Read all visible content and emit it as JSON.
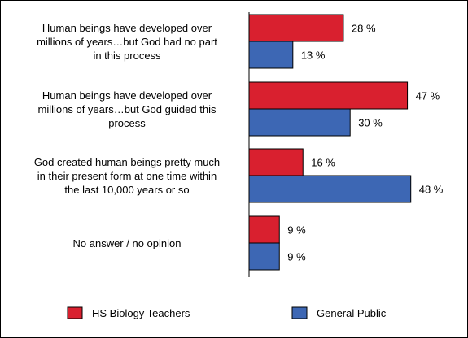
{
  "chart_data": {
    "type": "bar",
    "orientation": "horizontal",
    "categories": [
      [
        "Human beings have developed over",
        "millions of years…but God had no part",
        "in this process"
      ],
      [
        "Human beings have developed over",
        "millions of years…but God guided this",
        "process"
      ],
      [
        "God created human beings pretty much",
        "in their present form at one time within",
        "the last 10,000 years or so"
      ],
      [
        "No answer / no opinion"
      ]
    ],
    "series": [
      {
        "name": "HS Biology Teachers",
        "values": [
          28,
          47,
          16,
          9
        ],
        "labels": [
          "28 %",
          "47 %",
          "16 %",
          "9 %"
        ],
        "color": "#d9202f"
      },
      {
        "name": "General Public",
        "values": [
          13,
          30,
          48,
          9
        ],
        "labels": [
          "13 %",
          "30 %",
          "48 %",
          "9 %"
        ],
        "color": "#3d67b4"
      }
    ],
    "xlim": [
      0,
      50
    ],
    "grid": false,
    "legend_position": "bottom"
  }
}
